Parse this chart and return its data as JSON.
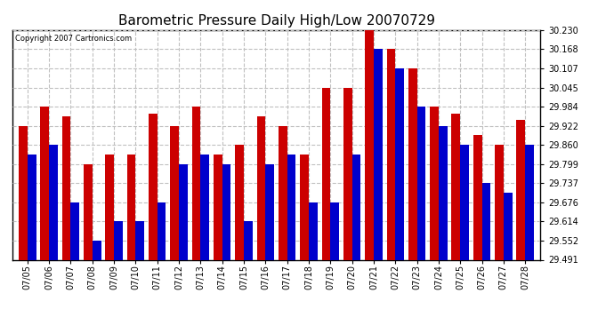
{
  "title": "Barometric Pressure Daily High/Low 20070729",
  "copyright": "Copyright 2007 Cartronics.com",
  "categories": [
    "07/05",
    "07/06",
    "07/07",
    "07/08",
    "07/09",
    "07/10",
    "07/11",
    "07/12",
    "07/13",
    "07/14",
    "07/15",
    "07/16",
    "07/17",
    "07/18",
    "07/19",
    "07/20",
    "07/21",
    "07/22",
    "07/23",
    "07/24",
    "07/25",
    "07/26",
    "07/27",
    "07/28"
  ],
  "highs": [
    29.922,
    29.984,
    29.952,
    29.799,
    29.83,
    29.83,
    29.96,
    29.922,
    29.984,
    29.83,
    29.86,
    29.952,
    29.922,
    29.83,
    30.045,
    30.045,
    30.23,
    30.168,
    30.107,
    29.984,
    29.96,
    29.891,
    29.86,
    29.941
  ],
  "lows": [
    29.83,
    29.86,
    29.676,
    29.552,
    29.614,
    29.614,
    29.676,
    29.799,
    29.83,
    29.799,
    29.614,
    29.799,
    29.83,
    29.676,
    29.676,
    29.83,
    30.168,
    30.107,
    29.984,
    29.922,
    29.86,
    29.737,
    29.706,
    29.86
  ],
  "bar_color_high": "#cc0000",
  "bar_color_low": "#0000cc",
  "bg_color": "#ffffff",
  "grid_color": "#c0c0c0",
  "title_fontsize": 11,
  "yticks": [
    29.491,
    29.552,
    29.614,
    29.676,
    29.737,
    29.799,
    29.86,
    29.922,
    29.984,
    30.045,
    30.107,
    30.168,
    30.23
  ],
  "ylim_min": 29.491,
  "ylim_max": 30.23
}
